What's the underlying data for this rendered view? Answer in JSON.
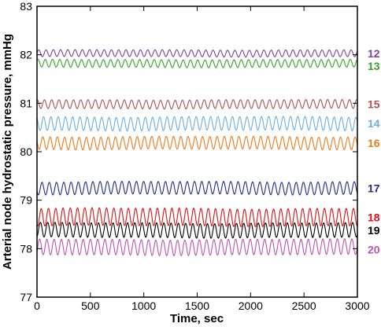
{
  "chart_data": {
    "type": "line",
    "xlabel": "Time, sec",
    "ylabel": "Arterial node hydrostatic pressure, mmHg",
    "xlim": [
      0,
      3000
    ],
    "ylim": [
      77,
      83
    ],
    "x_ticks": [
      0,
      500,
      1000,
      1500,
      2000,
      2500,
      3000
    ],
    "y_ticks": [
      77,
      78,
      79,
      80,
      81,
      82,
      83
    ],
    "grid": false,
    "legend": "right-side inline labels",
    "oscillation_period_sec": 68,
    "series": [
      {
        "name": "12",
        "color": "#7b3fa8",
        "center": 82.03,
        "amplitude": 0.07
      },
      {
        "name": "13",
        "color": "#3aa02a",
        "center": 81.82,
        "amplitude": 0.08
      },
      {
        "name": "15",
        "color": "#b05050",
        "center": 80.98,
        "amplitude": 0.09
      },
      {
        "name": "14",
        "color": "#6aaee0",
        "center": 80.58,
        "amplitude": 0.14
      },
      {
        "name": "16",
        "color": "#ef7a1a",
        "center": 80.18,
        "amplitude": 0.13
      },
      {
        "name": "17",
        "color": "#202a8a",
        "center": 79.25,
        "amplitude": 0.13
      },
      {
        "name": "18",
        "color": "#dd1111",
        "center": 78.65,
        "amplitude": 0.18
      },
      {
        "name": "19",
        "color": "#000000",
        "center": 78.38,
        "amplitude": 0.15
      },
      {
        "name": "20",
        "color": "#c050b8",
        "center": 78.03,
        "amplitude": 0.16
      }
    ]
  }
}
